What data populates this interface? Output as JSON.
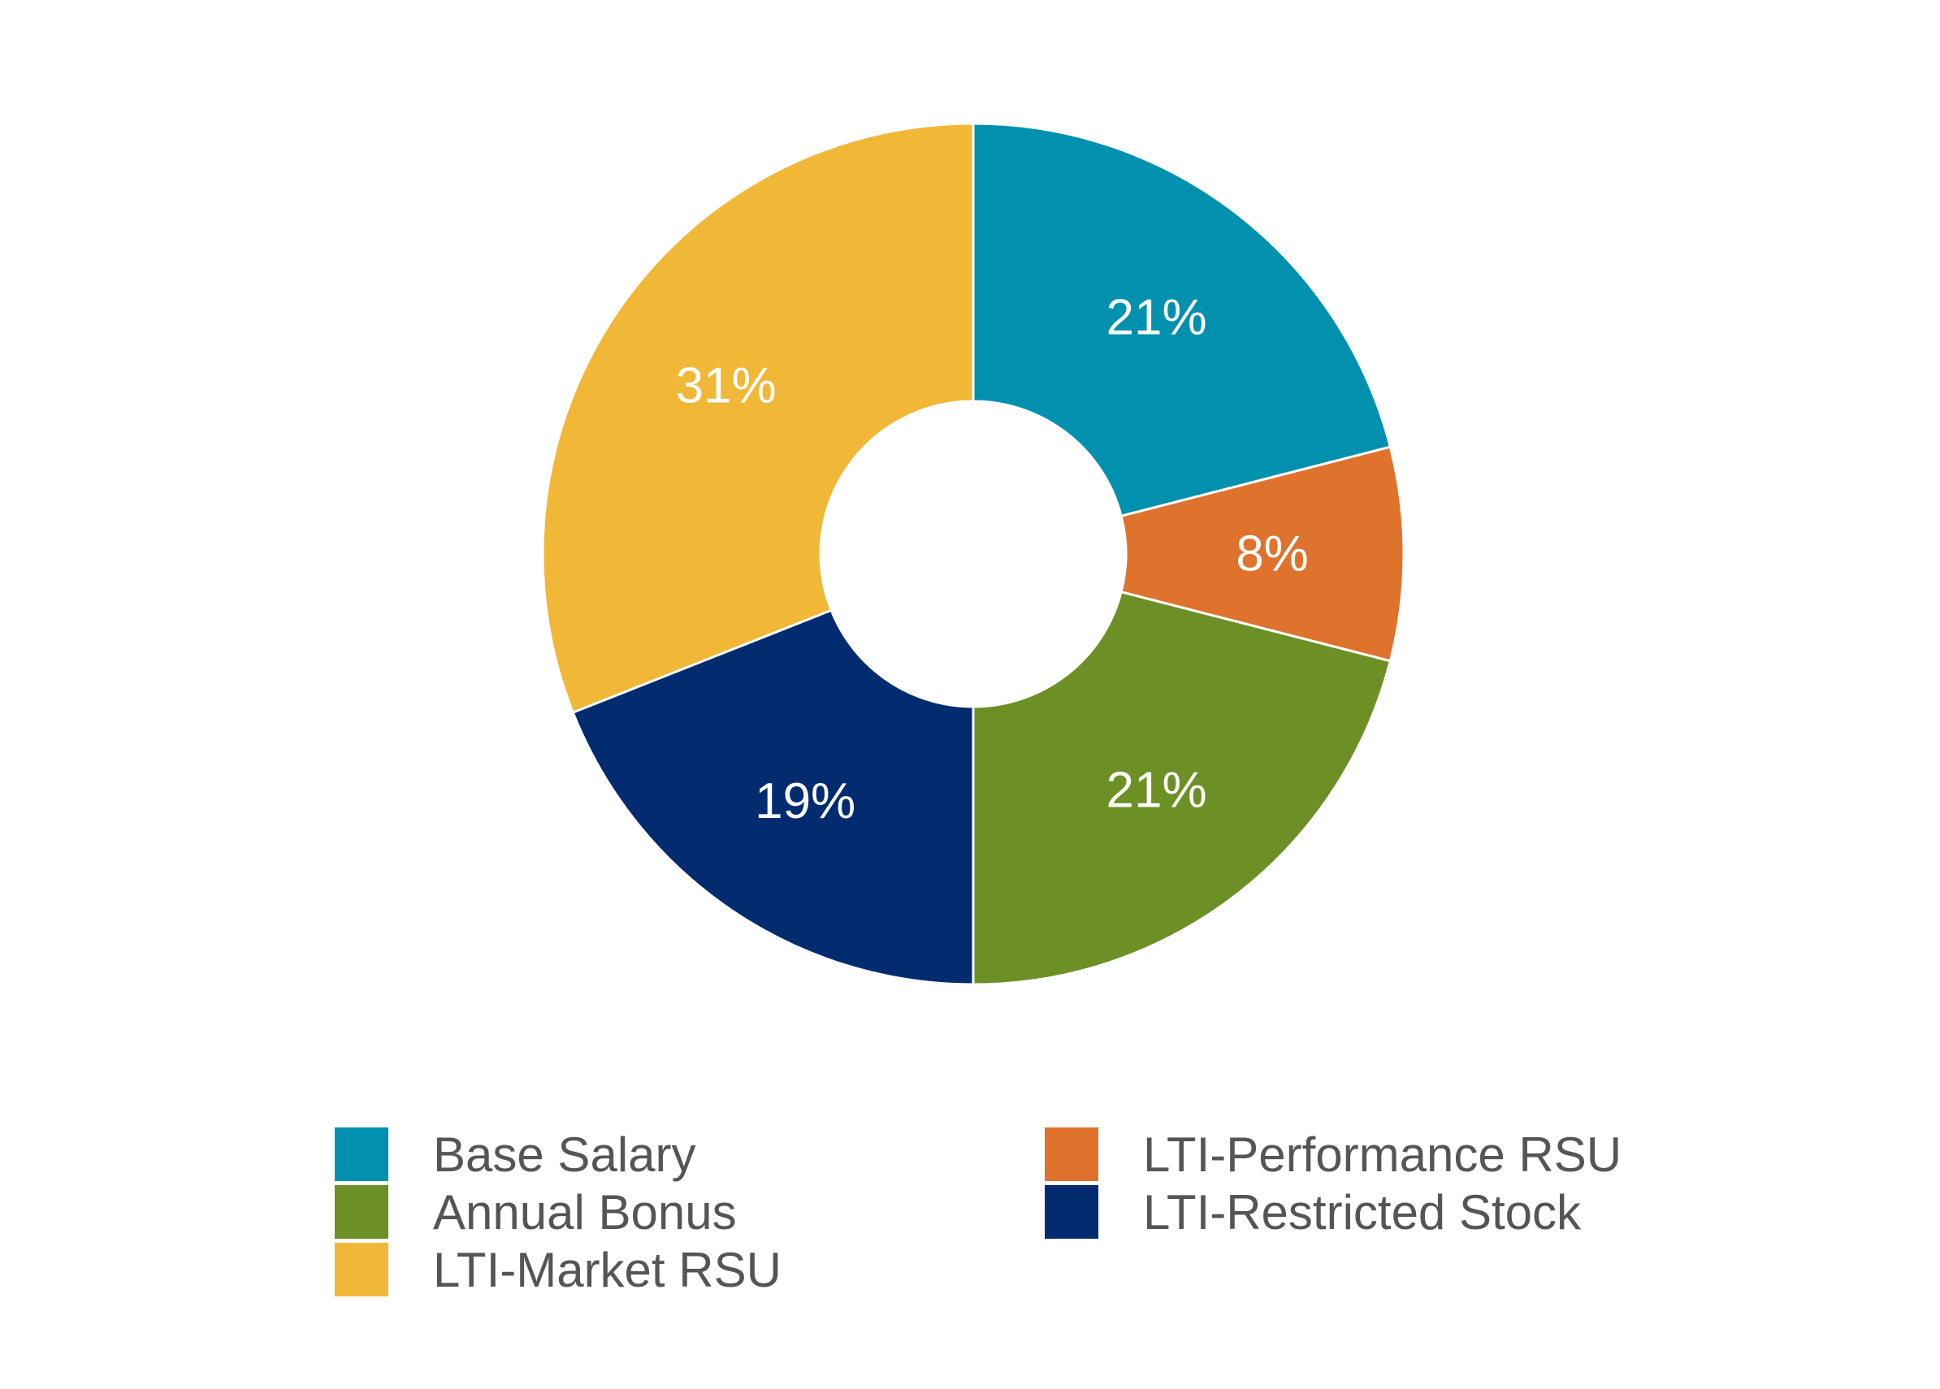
{
  "chart_data": {
    "type": "pie",
    "variant": "donut",
    "title": "",
    "slices": [
      {
        "label": "Base Salary",
        "value": 21,
        "display": "21%",
        "color": "#0290AF"
      },
      {
        "label": "LTI-Performance RSU",
        "value": 8,
        "display": "8%",
        "color": "#DF722C"
      },
      {
        "label": "Annual Bonus",
        "value": 21,
        "display": "21%",
        "color": "#6C8F26"
      },
      {
        "label": "LTI-Restricted Stock",
        "value": 19,
        "display": "19%",
        "color": "#022C6F"
      },
      {
        "label": "LTI-Market RSU",
        "value": 31,
        "display": "31%",
        "color": "#F1B736"
      }
    ],
    "legend": {
      "placement": "bottom",
      "items": [
        {
          "label": "Base Salary",
          "color": "#0290AF"
        },
        {
          "label": "Annual Bonus",
          "color": "#6C8F26"
        },
        {
          "label": "LTI-Market RSU",
          "color": "#F1B736"
        },
        {
          "label": "LTI-Performance RSU",
          "color": "#DF722C"
        },
        {
          "label": "LTI-Restricted Stock",
          "color": "#022C6F"
        }
      ]
    }
  }
}
